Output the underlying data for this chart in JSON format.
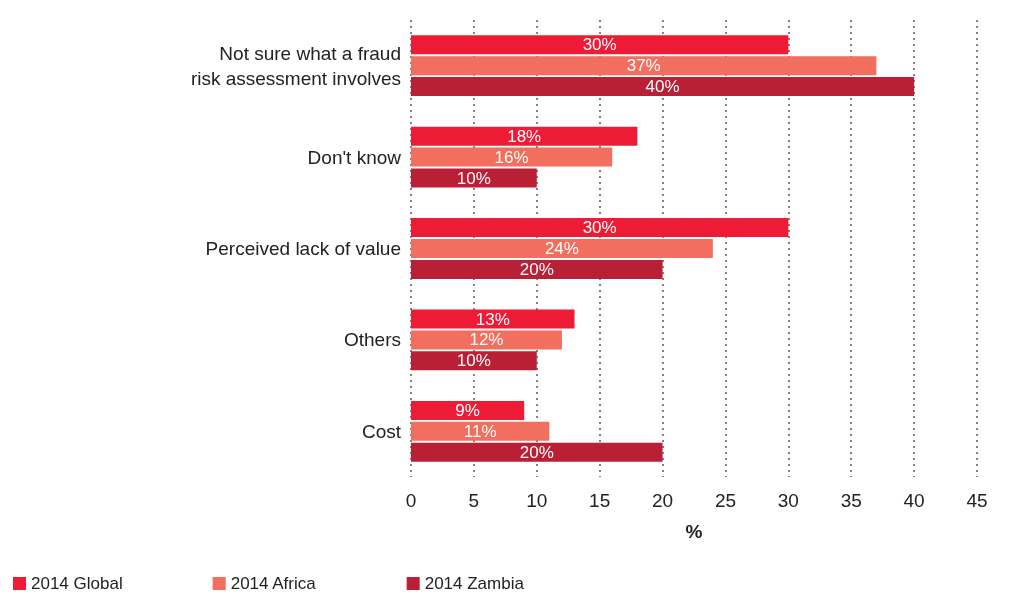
{
  "chart_data": {
    "type": "bar",
    "orientation": "horizontal",
    "categories": [
      "Not sure what a fraud\nrisk assessment involves",
      "Don't know",
      "Perceived lack of value",
      "Others",
      "Cost"
    ],
    "series": [
      {
        "name": "2014 Global",
        "color": "#ed1b35",
        "values": [
          30,
          18,
          30,
          13,
          9
        ],
        "value_labels": [
          "30%",
          "18%",
          "30%",
          "13%",
          "9%"
        ]
      },
      {
        "name": "2014 Africa",
        "color": "#f26e5e",
        "values": [
          37,
          16,
          24,
          12,
          11
        ],
        "value_labels": [
          "37%",
          "16%",
          "24%",
          "12%",
          "11%"
        ]
      },
      {
        "name": "2014 Zambia",
        "color": "#b91f35",
        "values": [
          40,
          10,
          20,
          10,
          20
        ],
        "value_labels": [
          "40%",
          "10%",
          "20%",
          "10%",
          "20%"
        ]
      }
    ],
    "xlabel": "%",
    "xlim": [
      0,
      45
    ],
    "xticks": [
      0,
      5,
      10,
      15,
      20,
      25,
      30,
      35,
      40,
      45
    ],
    "grid": "x",
    "legend": "bottom left"
  }
}
